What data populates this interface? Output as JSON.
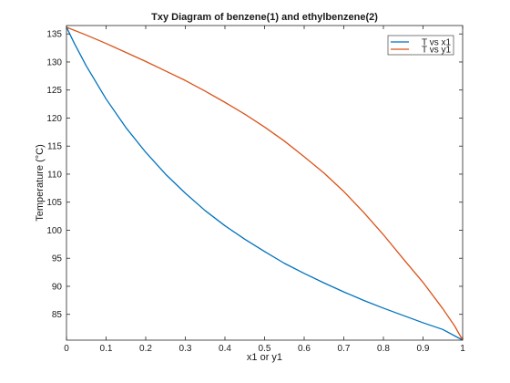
{
  "chart_data": {
    "type": "line",
    "title": "Txy Diagram of benzene(1) and ethylbenzene(2)",
    "xlabel": "x1 or y1",
    "ylabel": "Temperature (°C)",
    "xlim": [
      0,
      1
    ],
    "ylim": [
      80.4,
      136.5
    ],
    "xticks": [
      "0",
      "0.1",
      "0.2",
      "0.3",
      "0.4",
      "0.5",
      "0.6",
      "0.7",
      "0.8",
      "0.9",
      "1"
    ],
    "yticks": [
      "85",
      "90",
      "95",
      "100",
      "105",
      "110",
      "115",
      "120",
      "125",
      "130",
      "135"
    ],
    "grid": false,
    "legend_position": "top-right",
    "series": [
      {
        "name": "T vs x1",
        "color": "#0072BD",
        "x": [
          0,
          0.02,
          0.05,
          0.1,
          0.15,
          0.2,
          0.25,
          0.3,
          0.35,
          0.4,
          0.45,
          0.5,
          0.55,
          0.6,
          0.65,
          0.7,
          0.75,
          0.8,
          0.85,
          0.9,
          0.95,
          1
        ],
        "y": [
          136.2,
          133.3,
          129.3,
          123.4,
          118.3,
          113.9,
          110.0,
          106.6,
          103.5,
          100.8,
          98.4,
          96.2,
          94.1,
          92.3,
          90.6,
          89.0,
          87.5,
          86.1,
          84.8,
          83.5,
          82.3,
          80.4
        ]
      },
      {
        "name": "T vs y1",
        "color": "#D95319",
        "x": [
          0,
          0.05,
          0.1,
          0.15,
          0.2,
          0.25,
          0.3,
          0.35,
          0.4,
          0.45,
          0.5,
          0.55,
          0.6,
          0.65,
          0.7,
          0.75,
          0.8,
          0.85,
          0.9,
          0.95,
          0.98,
          1
        ],
        "y": [
          136.2,
          134.8,
          133.3,
          131.7,
          130.1,
          128.4,
          126.7,
          124.8,
          122.8,
          120.7,
          118.4,
          115.9,
          113.1,
          110.2,
          106.9,
          103.2,
          99.2,
          94.9,
          90.7,
          86.0,
          82.9,
          80.4
        ]
      }
    ]
  }
}
